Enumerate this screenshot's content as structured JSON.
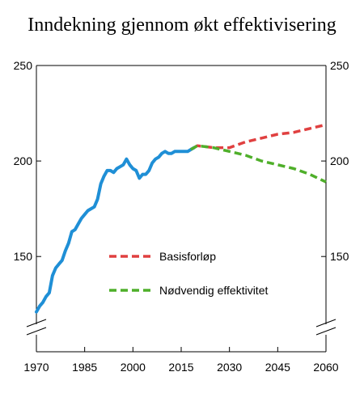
{
  "chart_data": {
    "type": "line",
    "title": "Inndekning gjennom økt effektivisering",
    "xlabel": "",
    "ylabel": "",
    "xlim": [
      1970,
      2060
    ],
    "ylim": [
      110,
      250
    ],
    "axis_break": true,
    "x_ticks": [
      "1970",
      "1985",
      "2000",
      "2015",
      "2030",
      "2045",
      "2060"
    ],
    "y_ticks": [
      "150",
      "200",
      "250"
    ],
    "grid": false,
    "legend_position": "center",
    "series": [
      {
        "name": "",
        "color": "#1f8fd6",
        "dash": "solid",
        "x": [
          1970,
          1971,
          1972,
          1973,
          1974,
          1975,
          1976,
          1977,
          1978,
          1979,
          1980,
          1981,
          1982,
          1983,
          1984,
          1985,
          1986,
          1987,
          1988,
          1989,
          1990,
          1991,
          1992,
          1993,
          1994,
          1995,
          1996,
          1997,
          1998,
          1999,
          2000,
          2001,
          2002,
          2003,
          2004,
          2005,
          2006,
          2007,
          2008,
          2009,
          2010,
          2011,
          2012,
          2013,
          2014,
          2015,
          2016,
          2017,
          2018,
          2019
        ],
        "y": [
          121,
          124,
          126,
          129,
          131,
          140,
          144,
          146,
          148,
          153,
          157,
          163,
          164,
          167,
          170,
          172,
          174,
          175,
          176,
          180,
          188,
          192,
          195,
          195,
          194,
          196,
          197,
          198,
          201,
          198,
          196,
          195,
          191,
          193,
          193,
          195,
          199,
          201,
          202,
          204,
          205,
          204,
          204,
          205,
          205,
          205,
          205,
          205,
          206,
          207
        ]
      },
      {
        "name": "Basisforløp",
        "color": "#e04040",
        "dash": "dashed",
        "x": [
          2019,
          2020,
          2025,
          2030,
          2035,
          2040,
          2045,
          2050,
          2055,
          2060
        ],
        "y": [
          207,
          208,
          207,
          207,
          210,
          212,
          214,
          215,
          217,
          219
        ]
      },
      {
        "name": "Nødvendig effektivitet",
        "color": "#4faf2a",
        "dash": "dashed",
        "x": [
          2018,
          2020,
          2025,
          2030,
          2035,
          2040,
          2045,
          2050,
          2055,
          2060
        ],
        "y": [
          206,
          208,
          207,
          205,
          203,
          200,
          198,
          196,
          193,
          189
        ]
      }
    ]
  }
}
